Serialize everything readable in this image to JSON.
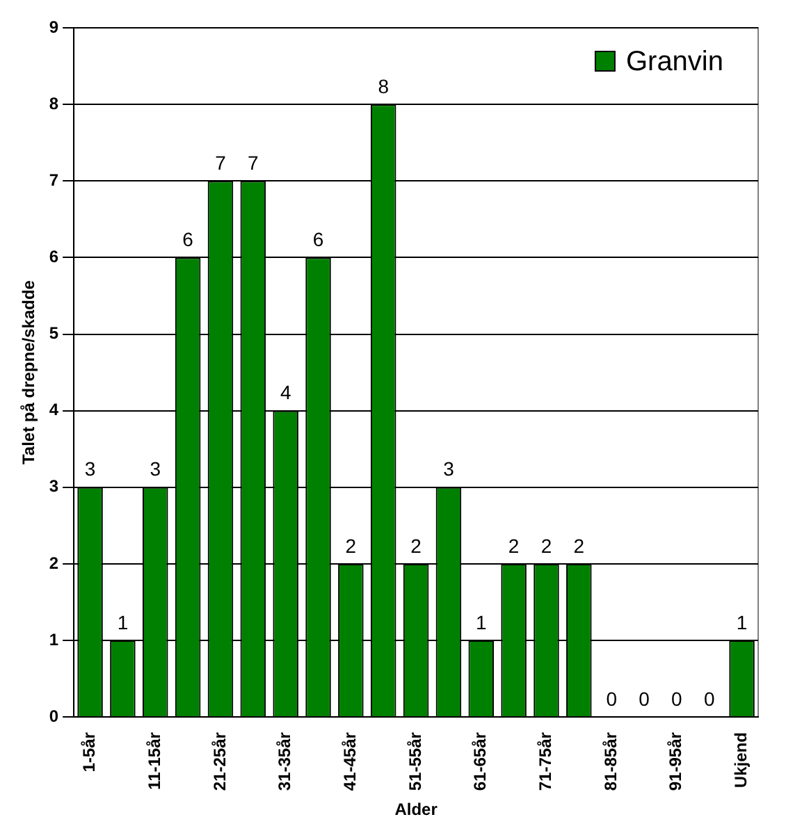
{
  "chart_data": {
    "type": "bar",
    "xlabel": "Alder",
    "ylabel": "Talet på drepne/skadde",
    "categories": [
      "1-5år",
      null,
      "11-15år",
      null,
      "21-25år",
      null,
      "31-35år",
      null,
      "41-45år",
      null,
      "51-55år",
      null,
      "61-65år",
      null,
      "71-75år",
      null,
      "81-85år",
      null,
      "91-95år",
      null,
      "Ukjend"
    ],
    "series": [
      {
        "name": "Granvin",
        "color": "#008000",
        "values": [
          3,
          1,
          3,
          6,
          7,
          7,
          4,
          6,
          2,
          8,
          2,
          3,
          1,
          2,
          2,
          2,
          0,
          0,
          0,
          0,
          1
        ]
      }
    ],
    "ylim": [
      0,
      9
    ],
    "yticks": [
      0,
      1,
      2,
      3,
      4,
      5,
      6,
      7,
      8,
      9
    ],
    "grid": "y",
    "legend": "top right",
    "data_labels": true
  }
}
